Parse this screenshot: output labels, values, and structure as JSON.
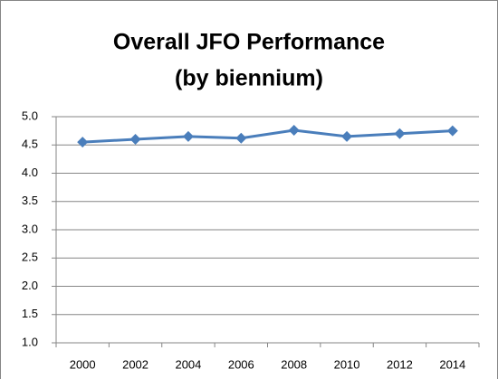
{
  "chart_data": {
    "type": "line",
    "title": "Overall JFO Performance",
    "subtitle": "(by biennium)",
    "categories": [
      "2000",
      "2002",
      "2004",
      "2006",
      "2008",
      "2010",
      "2012",
      "2014"
    ],
    "series": [
      {
        "color": "#4a7ebb",
        "values": [
          4.55,
          4.6,
          4.65,
          4.62,
          4.76,
          4.65,
          4.7,
          4.75
        ]
      }
    ],
    "ylim": [
      1,
      5
    ],
    "yticks": [
      {
        "value": 1,
        "label": "1.0"
      },
      1.5,
      {
        "value": 2,
        "label": "2.0"
      },
      2.5,
      {
        "value": 3,
        "label": "3.0"
      },
      3.5,
      {
        "value": 4,
        "label": "4.0"
      },
      4.5,
      {
        "value": 5,
        "label": "5.0"
      }
    ],
    "grid": true
  }
}
